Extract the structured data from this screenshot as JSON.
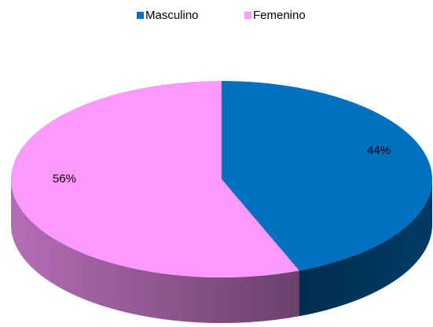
{
  "chart_data": {
    "type": "pie",
    "categories": [
      "Masculino",
      "Femenino"
    ],
    "values": [
      44,
      56
    ],
    "value_labels": [
      "44%",
      "56%"
    ],
    "colors": [
      "#0070c0",
      "#ff99ff"
    ],
    "legend": "top"
  }
}
